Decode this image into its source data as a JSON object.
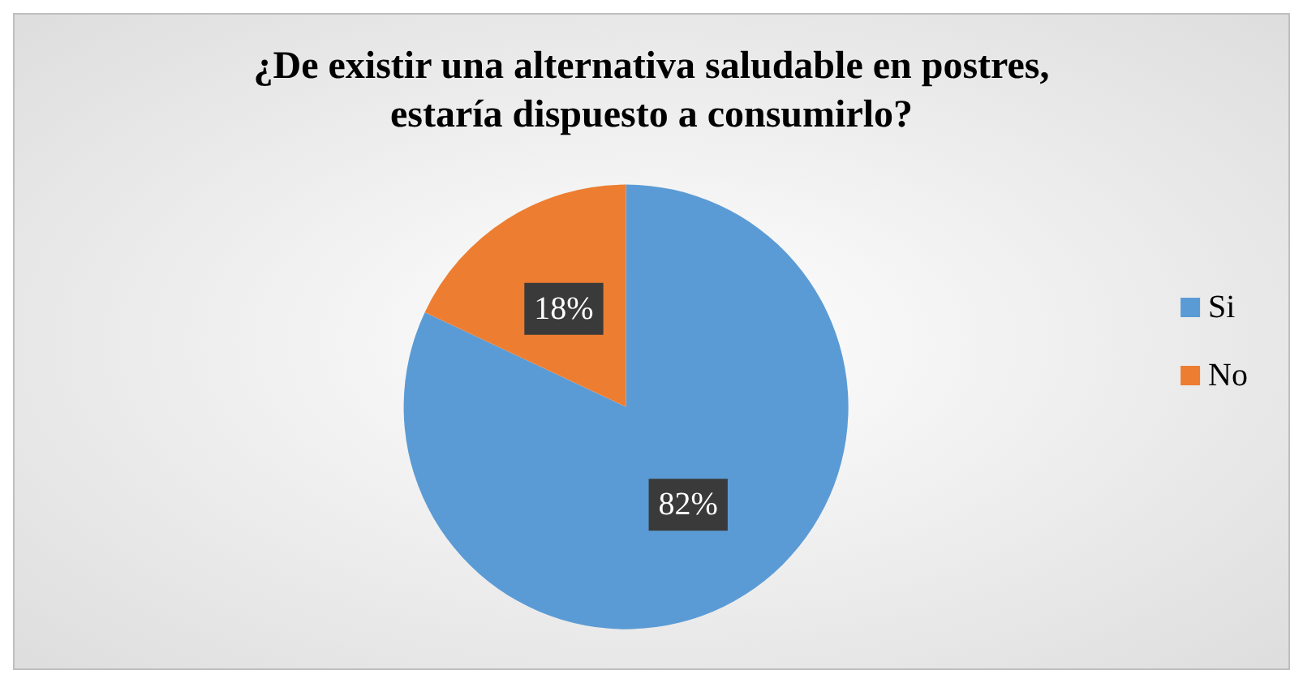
{
  "chart_data": {
    "type": "pie",
    "title": "¿De existir una alternativa saludable en postres,\nestaría dispuesto a consumirlo?",
    "categories": [
      "Si",
      "No"
    ],
    "values": [
      82,
      18
    ],
    "colors": [
      "#5b9bd5",
      "#ed7d31"
    ],
    "value_labels": [
      "82%",
      "18%"
    ],
    "legend": "right"
  }
}
